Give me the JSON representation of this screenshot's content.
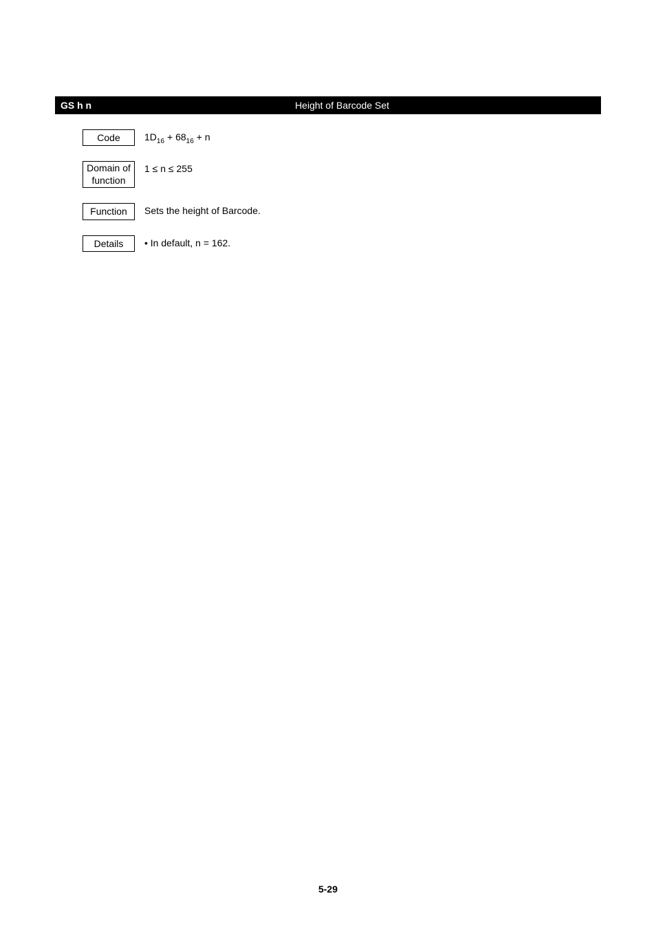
{
  "header": {
    "command": "GS h n",
    "title": "Height of Barcode Set"
  },
  "rows": {
    "code": {
      "label": "Code",
      "prefix": "1D",
      "sub1": "16",
      "plus1": " + 68",
      "sub2": "16",
      "suffix": " + n"
    },
    "domain": {
      "label_line1": "Domain of",
      "label_line2": "function",
      "value": "1 ≤ n ≤ 255"
    },
    "function": {
      "label": "Function",
      "value": "Sets the height of Barcode."
    },
    "details": {
      "label": "Details",
      "bullet": "•",
      "value": " In default, n = 162."
    }
  },
  "footer": {
    "page_number": "5-29"
  }
}
